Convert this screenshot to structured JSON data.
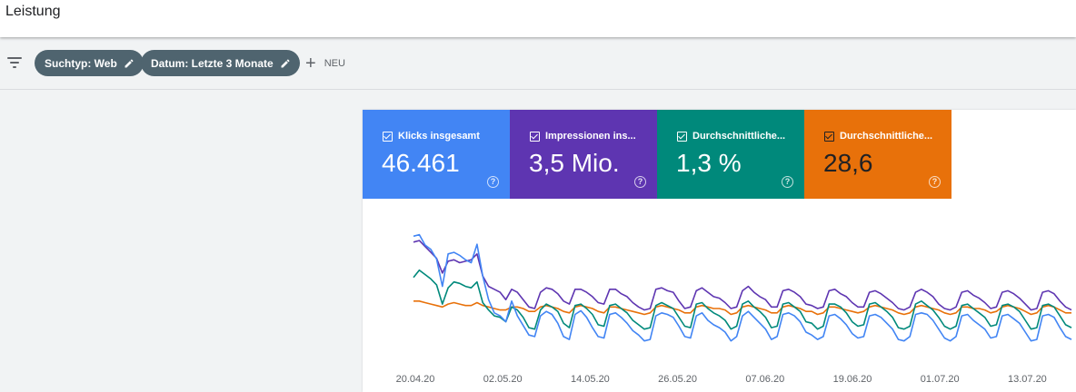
{
  "header": {
    "title": "Leistung"
  },
  "filters": {
    "chips": [
      {
        "label": "Suchtyp: Web"
      },
      {
        "label": "Datum: Letzte 3 Monate"
      }
    ],
    "new_label": "NEU"
  },
  "metrics": [
    {
      "label": "Klicks insgesamt",
      "value": "46.461",
      "color": "#4285f4"
    },
    {
      "label": "Impressionen ins...",
      "value": "3,5 Mio.",
      "color": "#5e35b1"
    },
    {
      "label": "Durchschnittliche...",
      "value": "1,3 %",
      "color": "#00897b"
    },
    {
      "label": "Durchschnittliche...",
      "value": "28,6",
      "color": "#e8710a"
    }
  ],
  "chart_data": {
    "type": "line",
    "x_ticks": [
      "20.04.20",
      "02.05.20",
      "14.05.20",
      "26.05.20",
      "07.06.20",
      "19.06.20",
      "01.07.20",
      "13.07.20"
    ],
    "series": [
      {
        "name": "Klicks insgesamt",
        "color": "#4285f4",
        "values": [
          96,
          98,
          84,
          78,
          65,
          28,
          72,
          74,
          70,
          64,
          60,
          85,
          42,
          10,
          -8,
          -12,
          -20,
          8,
          -12,
          -25,
          -38,
          -40,
          -12,
          -6,
          -10,
          -22,
          -40,
          -44,
          -10,
          -5,
          -14,
          -28,
          -40,
          -42,
          -10,
          -8,
          -14,
          -22,
          -32,
          -38,
          -46,
          -44,
          -12,
          -8,
          -10,
          -14,
          -26,
          -40,
          -42,
          -12,
          -8,
          -18,
          -24,
          -28,
          -34,
          -46,
          -40,
          -12,
          -6,
          -14,
          -22,
          -30,
          -44,
          -40,
          -10,
          -8,
          -12,
          -20,
          -34,
          -38,
          -44,
          -40,
          -12,
          -10,
          -16,
          -24,
          -36,
          -42,
          -40,
          -12,
          -10,
          -14,
          -22,
          -30,
          -44,
          -46,
          -40,
          -10,
          -8,
          -10,
          -18,
          -30,
          -42,
          -46,
          -40,
          -12,
          -10,
          -18,
          -24,
          -30,
          -42,
          -40,
          -12,
          -10,
          -16,
          -22,
          -34,
          -46,
          -44,
          -12,
          -10,
          -14,
          -28,
          -40,
          -44
        ]
      },
      {
        "name": "Impressionen insgesamt",
        "color": "#5e35b1",
        "values": [
          88,
          90,
          82,
          74,
          66,
          46,
          62,
          64,
          60,
          62,
          64,
          72,
          42,
          28,
          24,
          20,
          10,
          24,
          20,
          10,
          0,
          -2,
          20,
          26,
          24,
          18,
          8,
          4,
          24,
          24,
          20,
          14,
          6,
          4,
          24,
          24,
          18,
          14,
          6,
          0,
          -4,
          -2,
          24,
          26,
          22,
          20,
          8,
          -2,
          0,
          22,
          26,
          20,
          14,
          12,
          6,
          -2,
          0,
          22,
          28,
          20,
          14,
          10,
          0,
          0,
          22,
          24,
          20,
          14,
          4,
          2,
          -2,
          0,
          22,
          24,
          18,
          14,
          6,
          0,
          0,
          20,
          22,
          18,
          12,
          6,
          -2,
          -4,
          0,
          20,
          24,
          20,
          14,
          4,
          -2,
          -4,
          0,
          20,
          22,
          16,
          12,
          6,
          -2,
          0,
          20,
          22,
          18,
          12,
          4,
          -4,
          -2,
          20,
          22,
          18,
          8,
          0,
          -4
        ]
      },
      {
        "name": "Durchschnittliche CTR",
        "color": "#00897b",
        "values": [
          40,
          50,
          44,
          38,
          30,
          4,
          26,
          34,
          32,
          28,
          26,
          34,
          6,
          -4,
          -12,
          -14,
          -20,
          0,
          -4,
          -14,
          -28,
          -30,
          -4,
          4,
          0,
          -6,
          -22,
          -28,
          2,
          4,
          -2,
          -10,
          -24,
          -26,
          2,
          4,
          -2,
          -8,
          -18,
          -24,
          -30,
          -28,
          2,
          6,
          2,
          -2,
          -14,
          -26,
          -28,
          4,
          6,
          -2,
          -8,
          -12,
          -18,
          -30,
          -26,
          4,
          8,
          0,
          -6,
          -14,
          -28,
          -26,
          4,
          6,
          0,
          -6,
          -20,
          -22,
          -30,
          -26,
          4,
          4,
          0,
          -8,
          -20,
          -26,
          -24,
          4,
          6,
          0,
          -6,
          -14,
          -28,
          -30,
          -26,
          4,
          8,
          2,
          -4,
          -14,
          -26,
          -30,
          -26,
          2,
          4,
          -2,
          -8,
          -14,
          -26,
          -24,
          2,
          4,
          0,
          -6,
          -18,
          -30,
          -28,
          2,
          4,
          0,
          -12,
          -24,
          -28
        ]
      },
      {
        "name": "Durchschnittliche Position",
        "color": "#e8710a",
        "values": [
          8,
          8,
          6,
          4,
          2,
          0,
          4,
          6,
          4,
          2,
          2,
          6,
          2,
          0,
          -2,
          -4,
          -4,
          0,
          0,
          -2,
          -6,
          -6,
          0,
          2,
          0,
          -2,
          -6,
          -8,
          0,
          2,
          0,
          -2,
          -6,
          -8,
          0,
          0,
          -2,
          -4,
          -6,
          -8,
          -10,
          -8,
          0,
          2,
          0,
          -2,
          -4,
          -8,
          -8,
          0,
          2,
          0,
          -2,
          -2,
          -4,
          -10,
          -8,
          0,
          2,
          0,
          -2,
          -4,
          -8,
          -8,
          0,
          2,
          0,
          -2,
          -6,
          -6,
          -10,
          -8,
          0,
          0,
          -2,
          -4,
          -6,
          -8,
          -6,
          0,
          2,
          0,
          -2,
          -4,
          -8,
          -10,
          -8,
          0,
          2,
          0,
          -2,
          -4,
          -8,
          -10,
          -8,
          0,
          0,
          -2,
          -2,
          -4,
          -8,
          -6,
          0,
          2,
          0,
          -2,
          -6,
          -10,
          -8,
          0,
          2,
          0,
          -4,
          -8,
          -8
        ]
      }
    ]
  }
}
